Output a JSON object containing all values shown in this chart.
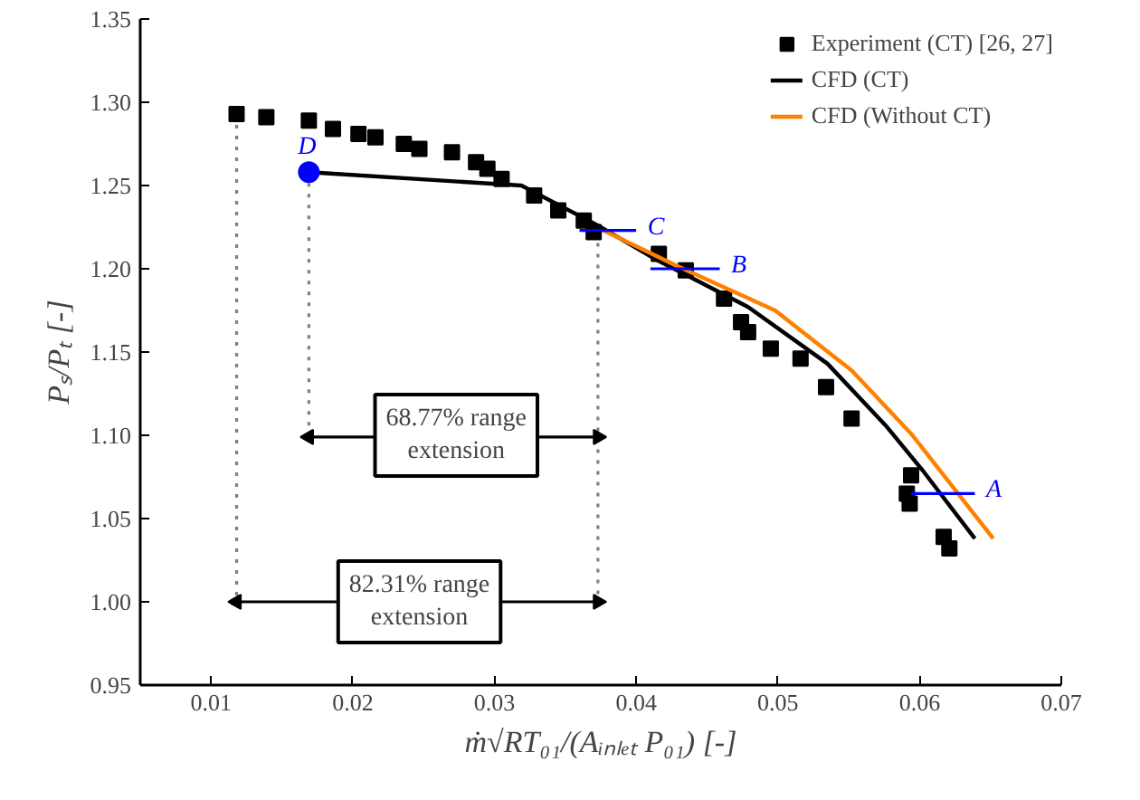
{
  "chart_data": {
    "type": "line",
    "xlabel": "ṁ√RT₀₁/(Aᵢₙₗₑₜ P₀₁) [-]",
    "ylabel": "Pₛ/Pₜ [-]",
    "xlim": [
      0.005,
      0.07
    ],
    "ylim": [
      0.95,
      1.35
    ],
    "xticks": [
      0.01,
      0.02,
      0.03,
      0.04,
      0.05,
      0.06,
      0.07
    ],
    "yticks": [
      {
        "value": 0.95,
        "label": "0.95"
      },
      {
        "value": 1.0,
        "label": "1.00"
      },
      {
        "value": 1.05,
        "label": "1.05"
      },
      {
        "value": 1.1,
        "label": "1.10"
      },
      {
        "value": 1.15,
        "label": "1.15"
      },
      {
        "value": 1.2,
        "label": "1.20"
      },
      {
        "value": 1.25,
        "label": "1.25"
      },
      {
        "value": 1.3,
        "label": "1.30"
      },
      {
        "value": 1.35,
        "label": "1.35"
      }
    ],
    "grid": false,
    "legend": "top right",
    "annotations": [
      {
        "text": "68.77% range\nextension",
        "x": 0.0273,
        "y": 1.1
      },
      {
        "text": "82.31% range\nextension",
        "x": 0.0247,
        "y": 1.0
      }
    ],
    "series": [
      {
        "type": "line",
        "color": "#808080",
        "line_style": "dotted",
        "x": [
          0.0118,
          0.0118
        ],
        "values": [
          1.293,
          1.0
        ]
      },
      {
        "type": "line",
        "color": "#808080",
        "line_style": "dotted",
        "x": [
          0.0169,
          0.0169
        ],
        "values": [
          1.258,
          1.099
        ]
      },
      {
        "type": "line",
        "color": "#808080",
        "line_style": "dotted",
        "x": [
          0.0373,
          0.0373
        ],
        "values": [
          1.222,
          1.0
        ]
      },
      {
        "type": "line",
        "color": "#000000",
        "marker": "triangle",
        "x": [
          0.0169,
          0.0373
        ],
        "values": [
          1.099,
          1.099
        ]
      },
      {
        "type": "line",
        "color": "#000000",
        "marker": "triangle",
        "x": [
          0.0118,
          0.0373
        ],
        "values": [
          1.0,
          1.0
        ]
      },
      {
        "name": "Experiment (CT) [26, 27]",
        "type": "scatter",
        "marker": "square",
        "color": "#000000",
        "x": [
          0.0118,
          0.0139,
          0.0169,
          0.0186,
          0.0204,
          0.0216,
          0.0236,
          0.0247,
          0.027,
          0.0287,
          0.0295,
          0.0305,
          0.0328,
          0.0345,
          0.0363,
          0.037,
          0.0416,
          0.0435,
          0.0462,
          0.0474,
          0.0479,
          0.0495,
          0.0516,
          0.0534,
          0.0552,
          0.0594,
          0.0591,
          0.0593,
          0.0617,
          0.0621
        ],
        "values": [
          1.293,
          1.291,
          1.289,
          1.284,
          1.281,
          1.279,
          1.275,
          1.272,
          1.27,
          1.264,
          1.26,
          1.254,
          1.244,
          1.235,
          1.229,
          1.222,
          1.209,
          1.199,
          1.182,
          1.168,
          1.162,
          1.152,
          1.146,
          1.129,
          1.11,
          1.076,
          1.065,
          1.059,
          1.039,
          1.032
        ]
      },
      {
        "name": "CFD (CT)",
        "color": "#000000",
        "x": [
          0.0169,
          0.0319,
          0.0373,
          0.0413,
          0.0479,
          0.0535,
          0.0577,
          0.0603,
          0.0639
        ],
        "values": [
          1.258,
          1.25,
          1.226,
          1.206,
          1.177,
          1.143,
          1.105,
          1.078,
          1.038
        ]
      },
      {
        "name": "CFD (Without CT)",
        "type": "line",
        "color": "#ff8000",
        "x": [
          0.0377,
          0.0428,
          0.0498,
          0.0552,
          0.0594,
          0.0652
        ],
        "values": [
          1.223,
          1.202,
          1.175,
          1.139,
          1.101,
          1.038
        ]
      },
      {
        "name": "C",
        "type": "line",
        "color": "#0000ff",
        "x": [
          0.036,
          0.04
        ],
        "values": [
          1.223,
          1.223
        ]
      },
      {
        "name": "B",
        "type": "line",
        "color": "#0000ff",
        "x": [
          0.041,
          0.0459
        ],
        "values": [
          1.2,
          1.2
        ]
      },
      {
        "name": "A",
        "type": "line",
        "color": "#0000ff",
        "x": [
          0.0594,
          0.0639
        ],
        "values": [
          1.065,
          1.065
        ]
      },
      {
        "name": "D",
        "type": "scatter",
        "marker": "circle",
        "color": "#0000ff",
        "x": [
          0.0169
        ],
        "values": [
          1.258
        ]
      }
    ]
  }
}
